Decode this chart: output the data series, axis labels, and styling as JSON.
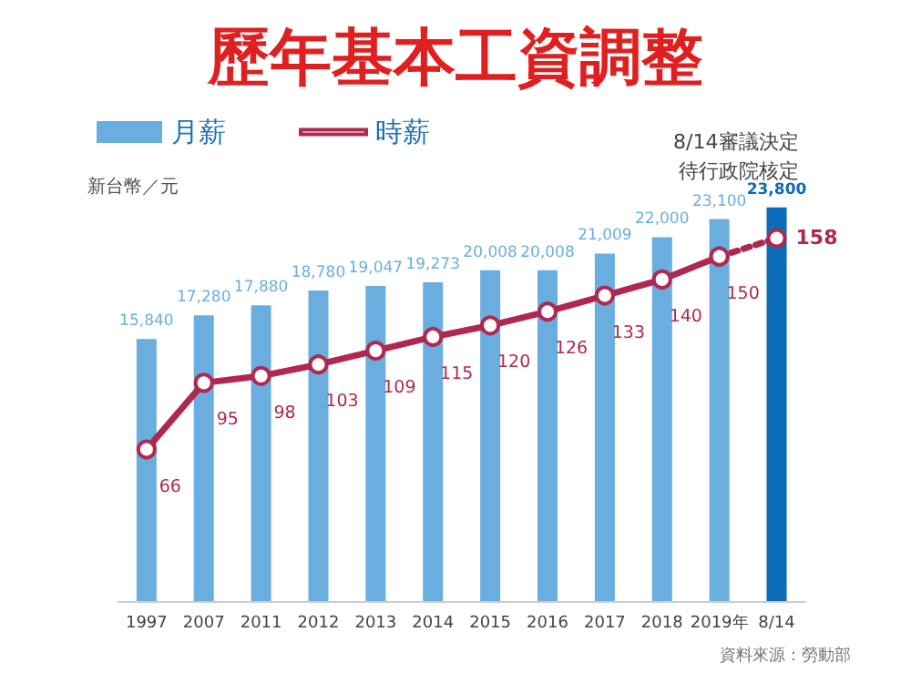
{
  "chart_data": {
    "type": "bar",
    "title": "歷年基本工資調整",
    "ylabel": "新台幣／元",
    "categories": [
      "1997",
      "2007",
      "2011",
      "2012",
      "2013",
      "2014",
      "2015",
      "2016",
      "2017",
      "2018",
      "2019年",
      "8/14"
    ],
    "series": [
      {
        "name": "月薪",
        "color": "#6aaee0",
        "colors": [
          "#6aaee0",
          "#6aaee0",
          "#6aaee0",
          "#6aaee0",
          "#6aaee0",
          "#6aaee0",
          "#6aaee0",
          "#6aaee0",
          "#6aaee0",
          "#6aaee0",
          "#6aaee0",
          "#0a6cb8"
        ],
        "values": [
          15840,
          17280,
          17880,
          18780,
          19047,
          19273,
          20008,
          20008,
          21009,
          22000,
          23100,
          23800
        ],
        "value_labels": [
          "15,840",
          "17,280",
          "17,880",
          "18,780",
          "19,047",
          "19,273",
          "20,008",
          "20,008",
          "21,009",
          "22,000",
          "23,100",
          "23,800"
        ]
      },
      {
        "name": "時薪",
        "type": "line",
        "axis": "y2",
        "color": "#b0284f",
        "marker": "circle",
        "line_style": "solid",
        "values": [
          66,
          95,
          98,
          103,
          109,
          115,
          120,
          126,
          133,
          140,
          150,
          null
        ]
      },
      {
        "type": "line",
        "axis": "y2",
        "color": "#b0284f",
        "marker": "circle",
        "line_style": "dotted",
        "values": [
          null,
          null,
          null,
          null,
          null,
          null,
          null,
          null,
          null,
          null,
          150,
          158
        ],
        "value_labels": [
          null,
          null,
          null,
          null,
          null,
          null,
          null,
          null,
          null,
          null,
          null,
          "158"
        ]
      }
    ],
    "tick_labels": "x",
    "data_labels": true,
    "legend": "top left",
    "annotations": [
      "8/14審議決定",
      "待行政院核定",
      "資料來源：勞動部"
    ]
  }
}
